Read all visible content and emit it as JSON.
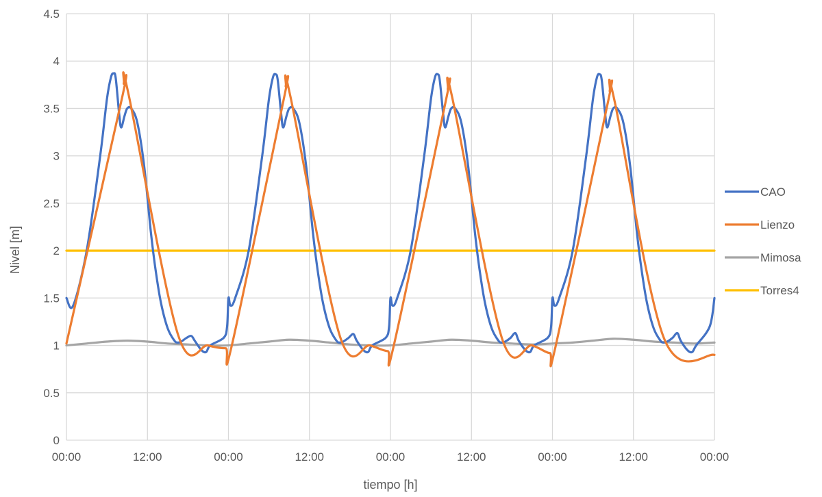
{
  "chart_data": {
    "type": "line",
    "title": "",
    "xlabel": "tiempo [h]",
    "ylabel": "Nivel [m]",
    "ylim": [
      0,
      4.5
    ],
    "yticks": [
      "0",
      "0.5",
      "1",
      "1.5",
      "2",
      "2.5",
      "3",
      "3.5",
      "4",
      "4.5"
    ],
    "xlim": [
      0,
      96
    ],
    "xticks": [
      "00:00",
      "12:00",
      "00:00",
      "12:00",
      "00:00",
      "12:00",
      "00:00",
      "12:00",
      "00:00"
    ],
    "grid": true,
    "legend_position": "right",
    "series": [
      {
        "name": "CAO",
        "color": "#4472C4",
        "points": [
          [
            0,
            1.5
          ],
          [
            1,
            1.42
          ],
          [
            3,
            2.0
          ],
          [
            5,
            3.0
          ],
          [
            6,
            3.6
          ],
          [
            6.6,
            3.83
          ],
          [
            7,
            3.87
          ],
          [
            7.3,
            3.82
          ],
          [
            7.8,
            3.45
          ],
          [
            8.1,
            3.3
          ],
          [
            8.6,
            3.42
          ],
          [
            9,
            3.5
          ],
          [
            9.6,
            3.5
          ],
          [
            10.5,
            3.35
          ],
          [
            11.5,
            2.9
          ],
          [
            12.5,
            2.2
          ],
          [
            13.2,
            1.8
          ],
          [
            14,
            1.45
          ],
          [
            15,
            1.18
          ],
          [
            16,
            1.05
          ],
          [
            16.5,
            1.03
          ],
          [
            17,
            1.04
          ],
          [
            17.8,
            1.08
          ],
          [
            18.5,
            1.1
          ],
          [
            19,
            1.05
          ],
          [
            20,
            0.95
          ],
          [
            20.7,
            0.93
          ],
          [
            21.3,
            1.0
          ],
          [
            23.3,
            1.08
          ],
          [
            23.8,
            1.2
          ],
          [
            24,
            1.5
          ],
          [
            24.3,
            1.42
          ],
          [
            25,
            1.5
          ],
          [
            27,
            2.0
          ],
          [
            29,
            3.0
          ],
          [
            30,
            3.6
          ],
          [
            30.6,
            3.83
          ],
          [
            31,
            3.86
          ],
          [
            31.3,
            3.8
          ],
          [
            31.8,
            3.45
          ],
          [
            32.1,
            3.3
          ],
          [
            32.6,
            3.42
          ],
          [
            33,
            3.5
          ],
          [
            33.6,
            3.5
          ],
          [
            34.5,
            3.35
          ],
          [
            35.5,
            2.9
          ],
          [
            36.5,
            2.2
          ],
          [
            37.2,
            1.8
          ],
          [
            38,
            1.45
          ],
          [
            39,
            1.18
          ],
          [
            40,
            1.05
          ],
          [
            40.5,
            1.03
          ],
          [
            41,
            1.04
          ],
          [
            41.8,
            1.08
          ],
          [
            42.5,
            1.12
          ],
          [
            43,
            1.05
          ],
          [
            44,
            0.95
          ],
          [
            44.7,
            0.93
          ],
          [
            45.3,
            1.0
          ],
          [
            47.3,
            1.08
          ],
          [
            47.8,
            1.2
          ],
          [
            48,
            1.5
          ],
          [
            48.3,
            1.42
          ],
          [
            49,
            1.5
          ],
          [
            51,
            2.0
          ],
          [
            53,
            3.0
          ],
          [
            54,
            3.6
          ],
          [
            54.6,
            3.83
          ],
          [
            55,
            3.86
          ],
          [
            55.3,
            3.8
          ],
          [
            55.8,
            3.45
          ],
          [
            56.1,
            3.3
          ],
          [
            56.6,
            3.42
          ],
          [
            57,
            3.5
          ],
          [
            57.6,
            3.5
          ],
          [
            58.5,
            3.35
          ],
          [
            59.5,
            2.9
          ],
          [
            60.5,
            2.2
          ],
          [
            61.2,
            1.8
          ],
          [
            62,
            1.45
          ],
          [
            63,
            1.18
          ],
          [
            64,
            1.05
          ],
          [
            64.5,
            1.03
          ],
          [
            65,
            1.04
          ],
          [
            65.8,
            1.08
          ],
          [
            66.5,
            1.13
          ],
          [
            67,
            1.05
          ],
          [
            68,
            0.95
          ],
          [
            68.7,
            0.93
          ],
          [
            69.3,
            1.0
          ],
          [
            71.3,
            1.08
          ],
          [
            71.8,
            1.2
          ],
          [
            72,
            1.5
          ],
          [
            72.3,
            1.42
          ],
          [
            73,
            1.5
          ],
          [
            75,
            2.0
          ],
          [
            77,
            3.0
          ],
          [
            78,
            3.6
          ],
          [
            78.6,
            3.83
          ],
          [
            79,
            3.86
          ],
          [
            79.3,
            3.8
          ],
          [
            79.8,
            3.45
          ],
          [
            80.1,
            3.3
          ],
          [
            80.6,
            3.42
          ],
          [
            81,
            3.5
          ],
          [
            81.6,
            3.5
          ],
          [
            82.5,
            3.35
          ],
          [
            83.5,
            2.9
          ],
          [
            84.5,
            2.2
          ],
          [
            85.2,
            1.8
          ],
          [
            86,
            1.45
          ],
          [
            87,
            1.18
          ],
          [
            88,
            1.05
          ],
          [
            88.5,
            1.03
          ],
          [
            89,
            1.04
          ],
          [
            89.8,
            1.08
          ],
          [
            90.5,
            1.13
          ],
          [
            91,
            1.05
          ],
          [
            92,
            0.95
          ],
          [
            92.7,
            0.93
          ],
          [
            93.3,
            1.0
          ],
          [
            95.3,
            1.2
          ],
          [
            96,
            1.5
          ]
        ]
      },
      {
        "name": "Lienzo",
        "color": "#ED7D31",
        "points": [
          [
            0,
            1.02
          ],
          [
            8.2,
            3.6
          ],
          [
            8.5,
            3.76
          ],
          [
            9.2,
            3.65
          ],
          [
            16.5,
            1.12
          ],
          [
            21,
            1.0
          ],
          [
            23.6,
            0.97
          ],
          [
            24.5,
            1.0
          ],
          [
            32.2,
            3.6
          ],
          [
            32.5,
            3.73
          ],
          [
            33.2,
            3.62
          ],
          [
            40.5,
            1.1
          ],
          [
            45,
            1.0
          ],
          [
            47.6,
            0.94
          ],
          [
            48.5,
            1.0
          ],
          [
            56.2,
            3.58
          ],
          [
            56.5,
            3.7
          ],
          [
            57.2,
            3.6
          ],
          [
            64.5,
            1.08
          ],
          [
            69,
            1.0
          ],
          [
            71.6,
            0.92
          ],
          [
            72.5,
            1.0
          ],
          [
            80.2,
            3.56
          ],
          [
            80.5,
            3.68
          ],
          [
            81.2,
            3.58
          ],
          [
            88.5,
            1.08
          ],
          [
            96,
            0.9
          ]
        ]
      },
      {
        "name": "Mimosa",
        "color": "#A5A5A5",
        "points": [
          [
            0,
            1.0
          ],
          [
            3,
            1.02
          ],
          [
            6,
            1.04
          ],
          [
            9,
            1.05
          ],
          [
            12,
            1.04
          ],
          [
            15,
            1.02
          ],
          [
            18,
            1.01
          ],
          [
            21,
            1.0
          ],
          [
            24,
            1.0
          ],
          [
            27,
            1.02
          ],
          [
            30,
            1.04
          ],
          [
            33,
            1.06
          ],
          [
            36,
            1.05
          ],
          [
            39,
            1.03
          ],
          [
            42,
            1.01
          ],
          [
            45,
            1.0
          ],
          [
            48,
            1.0
          ],
          [
            51,
            1.02
          ],
          [
            54,
            1.04
          ],
          [
            57,
            1.06
          ],
          [
            60,
            1.05
          ],
          [
            63,
            1.03
          ],
          [
            66,
            1.02
          ],
          [
            69,
            1.01
          ],
          [
            72,
            1.02
          ],
          [
            75,
            1.03
          ],
          [
            78,
            1.05
          ],
          [
            81,
            1.07
          ],
          [
            84,
            1.06
          ],
          [
            87,
            1.04
          ],
          [
            90,
            1.03
          ],
          [
            93,
            1.02
          ],
          [
            96,
            1.03
          ]
        ]
      },
      {
        "name": "Torres4",
        "color": "#FFC000",
        "points": [
          [
            0,
            2.0
          ],
          [
            96,
            2.0
          ]
        ]
      }
    ]
  }
}
